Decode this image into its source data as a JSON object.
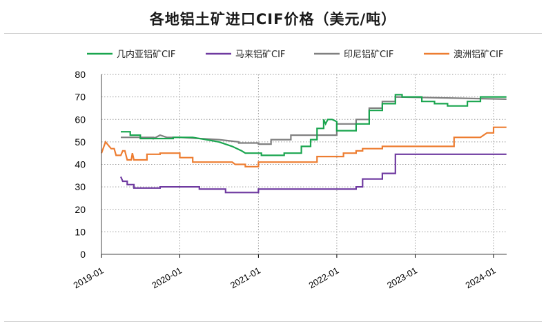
{
  "chart_data": {
    "type": "line",
    "title": "各地铝土矿进口CIF价格（美元/吨）",
    "xlabel": "",
    "ylabel": "",
    "ylim": [
      0,
      80
    ],
    "yticks": [
      0,
      10,
      20,
      30,
      40,
      50,
      60,
      70,
      80
    ],
    "xlim": [
      "2019-01",
      "2024-03"
    ],
    "xticks": [
      "2019-01",
      "2020-01",
      "2021-01",
      "2022-01",
      "2023-01",
      "2024-01"
    ],
    "grid": "dotted",
    "legend_position": "top",
    "series": [
      {
        "name": "几内亚铝矿CIF",
        "color": "#1aa54f",
        "points": [
          [
            "2019-04-01",
            54.5
          ],
          [
            "2019-05-15",
            54.5
          ],
          [
            "2019-05-15",
            53
          ],
          [
            "2019-07-01",
            53
          ],
          [
            "2019-07-01",
            51.5
          ],
          [
            "2019-12-01",
            51.5
          ],
          [
            "2019-12-01",
            52
          ],
          [
            "2020-03-01",
            52
          ],
          [
            "2020-05-01",
            51
          ],
          [
            "2020-07-01",
            50
          ],
          [
            "2020-09-01",
            48
          ],
          [
            "2020-10-15",
            46
          ],
          [
            "2020-11-01",
            45
          ],
          [
            "2021-01-15",
            45
          ],
          [
            "2021-01-15",
            44
          ],
          [
            "2021-05-01",
            44
          ],
          [
            "2021-05-01",
            45
          ],
          [
            "2021-07-20",
            45
          ],
          [
            "2021-07-20",
            48
          ],
          [
            "2021-09-01",
            48
          ],
          [
            "2021-09-01",
            51
          ],
          [
            "2021-10-01",
            51
          ],
          [
            "2021-10-01",
            56
          ],
          [
            "2021-11-01",
            56
          ],
          [
            "2021-11-01",
            60
          ],
          [
            "2021-11-10",
            58
          ],
          [
            "2021-11-20",
            60
          ],
          [
            "2021-12-10",
            60
          ],
          [
            "2022-01-01",
            59
          ],
          [
            "2022-01-01",
            55
          ],
          [
            "2022-04-01",
            55
          ],
          [
            "2022-04-01",
            58
          ],
          [
            "2022-06-01",
            58
          ],
          [
            "2022-06-01",
            64
          ],
          [
            "2022-08-01",
            64
          ],
          [
            "2022-08-01",
            67
          ],
          [
            "2022-10-01",
            67
          ],
          [
            "2022-10-01",
            71
          ],
          [
            "2022-11-01",
            71
          ],
          [
            "2022-11-01",
            70
          ],
          [
            "2023-02-01",
            70
          ],
          [
            "2023-02-01",
            68
          ],
          [
            "2023-04-01",
            68
          ],
          [
            "2023-04-01",
            67
          ],
          [
            "2023-06-01",
            67
          ],
          [
            "2023-06-01",
            66
          ],
          [
            "2023-09-01",
            66
          ],
          [
            "2023-09-01",
            68
          ],
          [
            "2023-11-01",
            68
          ],
          [
            "2023-11-01",
            70
          ],
          [
            "2024-03-01",
            70
          ]
        ]
      },
      {
        "name": "马来铝矿CIF",
        "color": "#6f3aa0",
        "points": [
          [
            "2019-04-01",
            34.5
          ],
          [
            "2019-04-10",
            32.5
          ],
          [
            "2019-05-01",
            32.5
          ],
          [
            "2019-05-01",
            31
          ],
          [
            "2019-06-01",
            31
          ],
          [
            "2019-06-01",
            29.5
          ],
          [
            "2019-10-01",
            29.5
          ],
          [
            "2019-10-01",
            30
          ],
          [
            "2020-04-01",
            30
          ],
          [
            "2020-04-01",
            29
          ],
          [
            "2020-08-01",
            29
          ],
          [
            "2020-08-01",
            27.5
          ],
          [
            "2021-01-01",
            27.5
          ],
          [
            "2021-01-01",
            29
          ],
          [
            "2022-04-01",
            29
          ],
          [
            "2022-04-01",
            30
          ],
          [
            "2022-05-01",
            30
          ],
          [
            "2022-05-01",
            33.5
          ],
          [
            "2022-08-01",
            33.5
          ],
          [
            "2022-08-01",
            36
          ],
          [
            "2022-10-01",
            36
          ],
          [
            "2022-10-01",
            44.5
          ],
          [
            "2024-03-01",
            44.5
          ]
        ]
      },
      {
        "name": "印尼铝矿CIF",
        "color": "#808080",
        "points": [
          [
            "2019-04-01",
            52
          ],
          [
            "2019-09-01",
            52
          ],
          [
            "2019-09-01",
            51.5
          ],
          [
            "2019-10-01",
            53
          ],
          [
            "2019-11-01",
            52
          ],
          [
            "2020-01-01",
            52
          ],
          [
            "2020-07-01",
            51
          ],
          [
            "2020-10-01",
            50
          ],
          [
            "2020-10-01",
            49.5
          ],
          [
            "2021-01-01",
            49.5
          ],
          [
            "2021-01-01",
            49
          ],
          [
            "2021-03-01",
            49
          ],
          [
            "2021-03-01",
            51
          ],
          [
            "2021-06-01",
            51
          ],
          [
            "2021-06-01",
            53
          ],
          [
            "2022-01-01",
            53
          ],
          [
            "2022-01-01",
            58
          ],
          [
            "2022-04-01",
            58
          ],
          [
            "2022-04-01",
            60
          ],
          [
            "2022-06-01",
            60
          ],
          [
            "2022-06-01",
            65
          ],
          [
            "2022-08-01",
            65
          ],
          [
            "2022-08-01",
            68
          ],
          [
            "2022-10-01",
            68
          ],
          [
            "2022-10-01",
            70
          ],
          [
            "2024-03-01",
            69
          ]
        ]
      },
      {
        "name": "澳洲铝矿CIF",
        "color": "#ed7d31",
        "points": [
          [
            "2019-01-01",
            45
          ],
          [
            "2019-01-20",
            50
          ],
          [
            "2019-02-15",
            47
          ],
          [
            "2019-03-01",
            47
          ],
          [
            "2019-03-10",
            44
          ],
          [
            "2019-04-01",
            44
          ],
          [
            "2019-04-10",
            46
          ],
          [
            "2019-04-20",
            46
          ],
          [
            "2019-05-01",
            42
          ],
          [
            "2019-05-20",
            42
          ],
          [
            "2019-05-25",
            45
          ],
          [
            "2019-06-01",
            42
          ],
          [
            "2019-08-01",
            42
          ],
          [
            "2019-08-01",
            44.5
          ],
          [
            "2019-10-01",
            44.5
          ],
          [
            "2019-10-01",
            45
          ],
          [
            "2020-01-01",
            45
          ],
          [
            "2020-01-01",
            43
          ],
          [
            "2020-03-01",
            43
          ],
          [
            "2020-03-01",
            41
          ],
          [
            "2020-09-01",
            41
          ],
          [
            "2020-09-15",
            40
          ],
          [
            "2020-11-01",
            40
          ],
          [
            "2020-11-01",
            39
          ],
          [
            "2021-01-01",
            39
          ],
          [
            "2021-01-01",
            41
          ],
          [
            "2021-10-01",
            41
          ],
          [
            "2021-10-01",
            43.5
          ],
          [
            "2022-02-01",
            43.5
          ],
          [
            "2022-02-01",
            45
          ],
          [
            "2022-04-01",
            45
          ],
          [
            "2022-04-01",
            46
          ],
          [
            "2022-05-01",
            46
          ],
          [
            "2022-05-01",
            47
          ],
          [
            "2022-08-01",
            47
          ],
          [
            "2022-08-01",
            48
          ],
          [
            "2023-07-01",
            48
          ],
          [
            "2023-07-01",
            52
          ],
          [
            "2023-11-01",
            52
          ],
          [
            "2023-12-01",
            54
          ],
          [
            "2024-01-01",
            54
          ],
          [
            "2024-01-01",
            56.5
          ],
          [
            "2024-03-01",
            56.5
          ]
        ]
      }
    ]
  }
}
